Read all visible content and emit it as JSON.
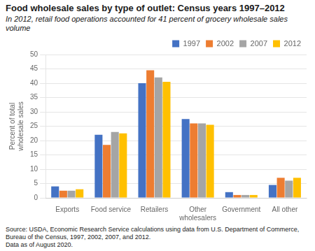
{
  "chart_data": {
    "type": "bar",
    "title": "Food wholesale sales by type of outlet: Census years 1997–2012",
    "subtitle": "In 2012, retail food operations accounted for 41 percent of grocery wholesale sales volume",
    "source": "Source: USDA, Economic Research Service calculations using data from U.S. Department of Commerce,\nBureau of the Census, 1997, 2002, 2007, and 2012.\nData as of August 2020.",
    "ylabel": "Percent of total\nwholesale sales",
    "categories": [
      "Exports",
      "Food service",
      "Retailers",
      "Other\nwholesalers",
      "Government",
      "All other"
    ],
    "series": [
      {
        "name": "1997",
        "color": "#4472C4",
        "values": [
          4.0,
          22.0,
          40.0,
          27.5,
          2.0,
          4.5
        ]
      },
      {
        "name": "2002",
        "color": "#ED7D31",
        "values": [
          2.5,
          18.5,
          44.5,
          26.0,
          1.0,
          7.0
        ]
      },
      {
        "name": "2007",
        "color": "#A5A5A5",
        "values": [
          2.5,
          23.0,
          42.0,
          26.0,
          1.0,
          6.0
        ]
      },
      {
        "name": "2012",
        "color": "#FFC000",
        "values": [
          3.0,
          22.5,
          40.5,
          25.5,
          1.0,
          7.0
        ]
      }
    ],
    "ylim": [
      0,
      50
    ],
    "yticks": [
      0,
      5,
      10,
      15,
      20,
      25,
      30,
      35,
      40,
      45,
      50
    ],
    "grid": true,
    "legend": "upper right"
  }
}
